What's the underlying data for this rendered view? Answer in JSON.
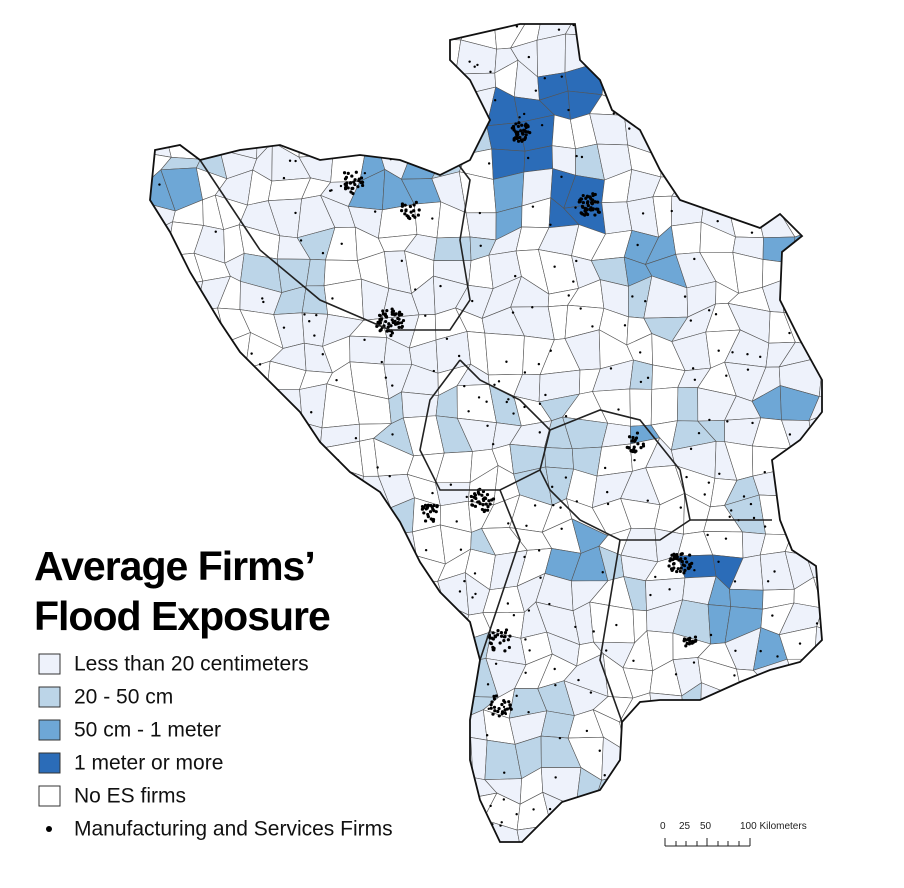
{
  "title": [
    "Average Firms’",
    "Flood Exposure"
  ],
  "legend": {
    "items": [
      {
        "label": "Less than 20 centimeters",
        "color": "#eef2fb"
      },
      {
        "label": "20 - 50 cm",
        "color": "#bcd5e8"
      },
      {
        "label": "50 cm - 1 meter",
        "color": "#6ea7d6"
      },
      {
        "label": "1 meter or more",
        "color": "#2b6cb8"
      },
      {
        "label": "No ES firms",
        "color": "#ffffff"
      },
      {
        "label": "Manufacturing and Services Firms"
      }
    ]
  },
  "scale_bar": {
    "labels": [
      "0",
      "25",
      "50",
      "100 Kilometers"
    ]
  }
}
